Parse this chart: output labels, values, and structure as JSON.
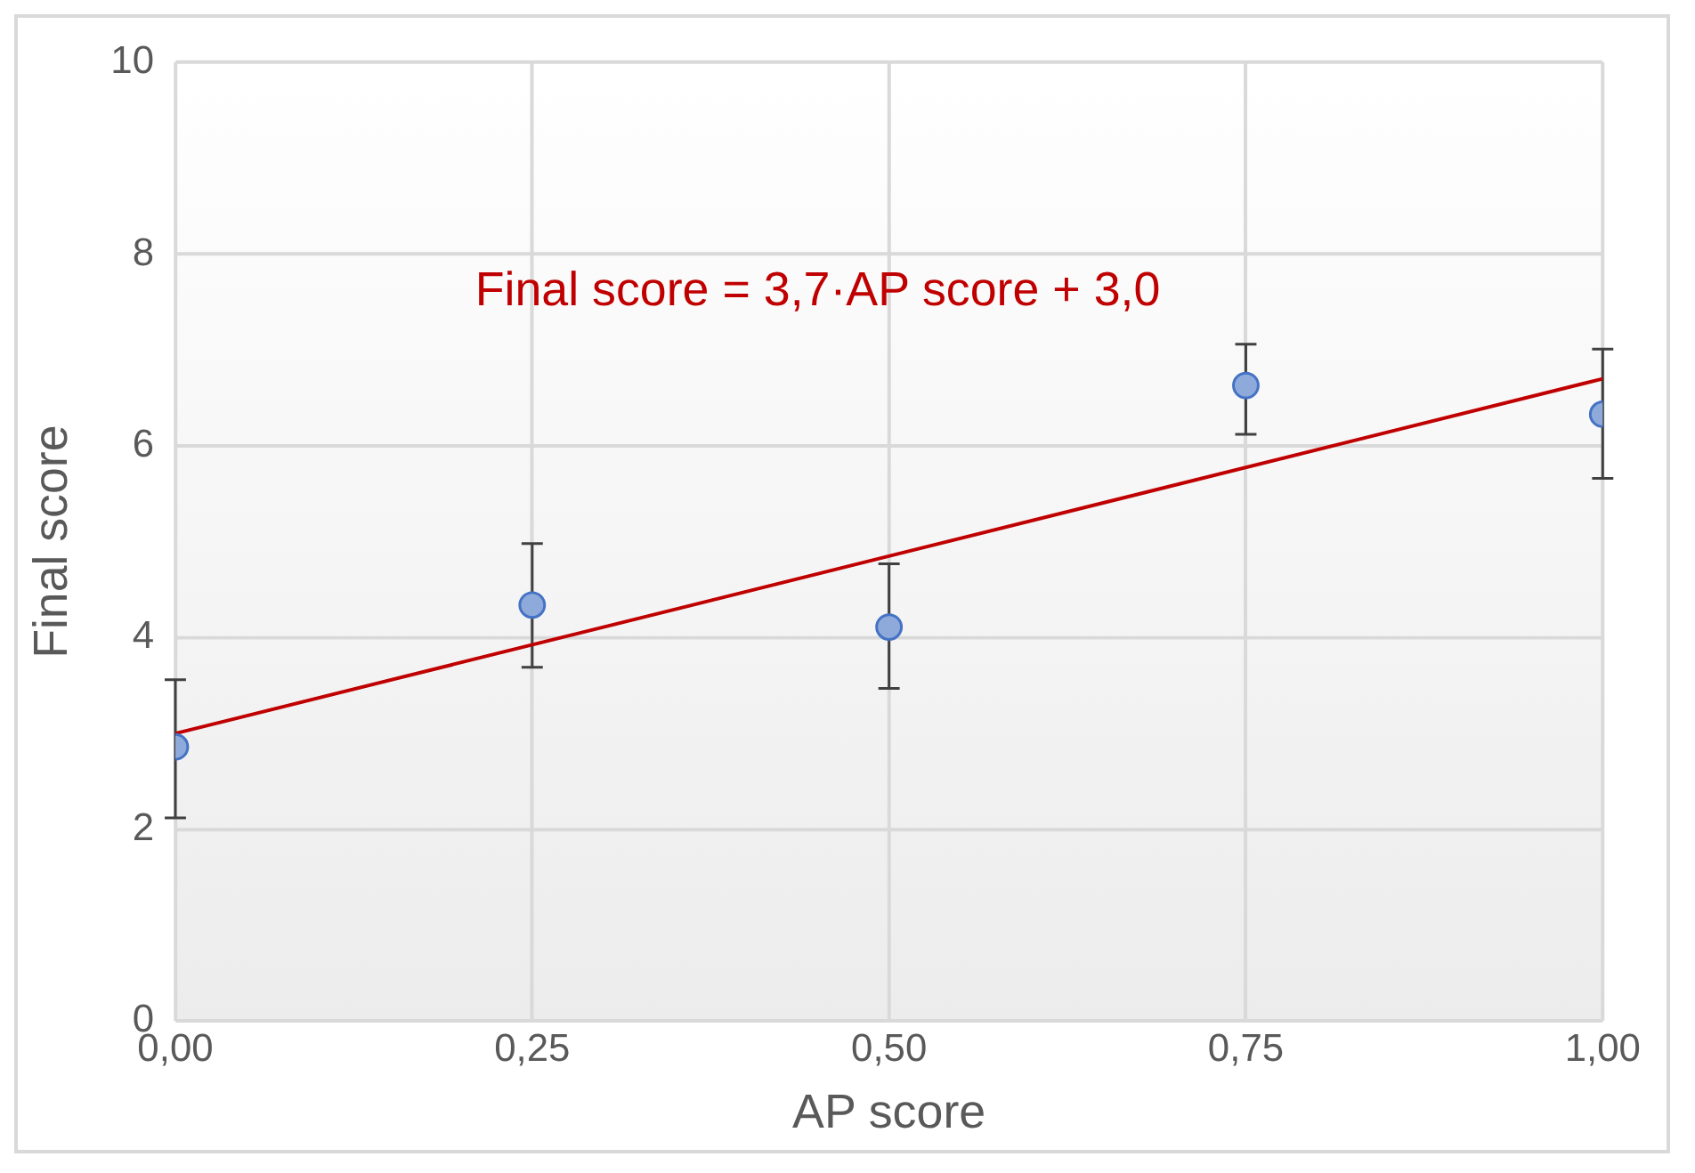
{
  "chart_data": {
    "type": "scatter",
    "xlabel": "AP score",
    "ylabel": "Final score",
    "annotations": [
      "Final score = 3,7·AP score + 3,0"
    ],
    "series": [
      {
        "color": "#8eaadb",
        "x": [
          0,
          0.25,
          0.5,
          0.75,
          1
        ],
        "values": [
          2.86,
          4.34,
          4.11,
          6.63,
          6.33
        ],
        "errors": [
          [
            2.12,
            3.56
          ],
          [
            3.69,
            4.98
          ],
          [
            3.47,
            4.77
          ],
          [
            6.12,
            7.06
          ],
          [
            5.66,
            7.01
          ]
        ],
        "marker": "circle"
      },
      {
        "type": "line",
        "color": "#c00000",
        "x": [
          0,
          1
        ],
        "values": [
          3.0,
          6.7
        ],
        "marker": "none"
      }
    ],
    "xlim": [
      0,
      1
    ],
    "xticks": [
      {
        "value": 0,
        "label": "0,00"
      },
      {
        "value": 0.25,
        "label": "0,25"
      },
      {
        "value": 0.5,
        "label": "0,50"
      },
      {
        "value": 0.75,
        "label": "0,75"
      },
      {
        "value": 1,
        "label": "1,00"
      }
    ],
    "ylim": [
      0,
      10
    ],
    "yticks": [
      0,
      2,
      4,
      6,
      8,
      10
    ],
    "grid": true,
    "legend": false
  }
}
